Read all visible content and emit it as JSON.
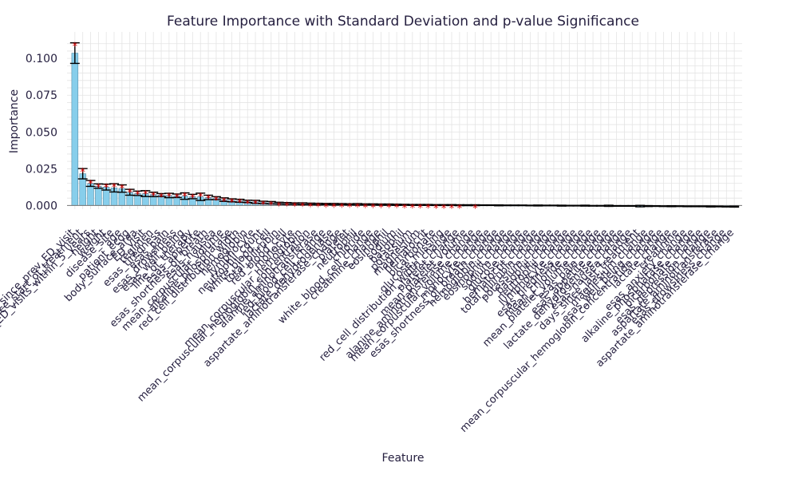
{
  "chart_data": {
    "type": "bar",
    "title": "Feature Importance with Standard Deviation and p-value Significance",
    "xlabel": "Feature",
    "ylabel": "Importance",
    "ylim": [
      -0.0025,
      0.118
    ],
    "yticks": [
      "0.000",
      "0.025",
      "0.050",
      "0.075",
      "0.100"
    ],
    "grid": true,
    "significance_marker": "*",
    "categories": [
      "days_since_prev_ED_visit",
      "days_since_start_of_treatment",
      "num_prior_ED_visits_within_5_years",
      "height",
      "weight",
      "disease_site",
      "age",
      "patient_ecog",
      "body_surface_area",
      "ED_visit",
      "regimen",
      "esas_tiredness",
      "esas_pain",
      "esas_drowsiness",
      "esas_well_being",
      "line_of_therapy",
      "esas_appetite",
      "esas_shortness_of_breath",
      "esas_nausea",
      "mean_corpuscular_volume",
      "alkaline_phosphatase",
      "red_cell_distribution_width",
      "hemoglobin",
      "lymphocyte",
      "neutrophil_count",
      "white_blood_cell",
      "total_bilirubin",
      "red_blood_cell",
      "monocyte",
      "mean_corpuscular_hemoglobin",
      "mean_corpuscular_hemoglobin_concentration",
      "alanine_aminotransferase",
      "red_blood_cell_change",
      "lactate_dehydrogenase",
      "aspartate_aminotransferase_change",
      "platelet",
      "neutrophil",
      "chloride",
      "white_blood_cell_change",
      "creatinine_change",
      "eosinophil",
      "sodium",
      "basophil",
      "potassium",
      "magnesium",
      "hematocrit",
      "bicarbonate",
      "glucose_missing",
      "red_cell_distribution_width_change",
      "platelet_change",
      "mean_platelet_volume",
      "alanine_aminotransferase_change",
      "mean_corpuscular_volume_change",
      "monocyte_change",
      "esas_shortness_of_breath_change",
      "hemoglobin_change",
      "eosinophil_change",
      "sodium_change",
      "glucose_change",
      "hematocrit_change",
      "total_bilirubin_change",
      "potassium_change",
      "basophil_change",
      "neutrophil_change",
      "lymphocyte_change",
      "esas_tiredness_change",
      "mean_chloride_change",
      "mean_platelet_volume_change",
      "esas_pain_change",
      "esas_appetite_change",
      "lactate_dehydrogenase_change",
      "esas_nausea_change",
      "days_since_last_treatment",
      "magnesium_change",
      "esas_well_being_change",
      "mean_corpuscular_hemoglobin_concentration_change",
      "lactate_change",
      "creatinine",
      "esas_anxiety_change",
      "alkaline_phosphatase_change",
      "bicarbonate_change",
      "esas_depression_change",
      "aspartate_aminotransferase",
      "esas_drowsiness_change",
      "aspartate_aminotransferase_change"
    ],
    "values": [
      0.1036,
      0.0216,
      0.015,
      0.0132,
      0.0125,
      0.012,
      0.0115,
      0.009,
      0.0083,
      0.0081,
      0.0075,
      0.0071,
      0.0068,
      0.0066,
      0.0064,
      0.0061,
      0.0059,
      0.0055,
      0.005,
      0.004,
      0.0035,
      0.0032,
      0.0028,
      0.0025,
      0.0021,
      0.0019,
      0.0016,
      0.0014,
      0.0013,
      0.0012,
      0.0011,
      0.001,
      0.001,
      0.0009,
      0.0009,
      0.0008,
      0.0008,
      0.0007,
      0.0007,
      0.0006,
      0.0006,
      0.0005,
      0.0005,
      0.0004,
      0.0004,
      0.0004,
      0.0003,
      0.0003,
      0.0003,
      0.0002,
      0.0002,
      0.0002,
      0.0002,
      0.0002,
      0.0001,
      0.0001,
      0.0001,
      0.0001,
      0.0,
      0.0,
      0.0,
      0.0,
      -0.0001,
      -0.0001,
      -0.0001,
      -0.0001,
      -0.0002,
      -0.0002,
      -0.0002,
      -0.0003,
      -0.0003,
      -0.0003,
      -0.0004,
      -0.0004,
      -0.0004,
      -0.0005,
      -0.0005,
      -0.0005,
      -0.0006,
      -0.0006,
      -0.0006,
      -0.0007,
      -0.0007,
      -0.0008,
      -0.0008
    ],
    "std": [
      0.007,
      0.0035,
      0.002,
      0.0015,
      0.002,
      0.0028,
      0.0025,
      0.002,
      0.0015,
      0.002,
      0.0015,
      0.001,
      0.0015,
      0.0012,
      0.0022,
      0.0015,
      0.0025,
      0.0015,
      0.001,
      0.0012,
      0.001,
      0.001,
      0.0008,
      0.001,
      0.0008,
      0.0008,
      0.0006,
      0.0006,
      0.0005,
      0.0006,
      0.0005,
      0.0005,
      0.0004,
      0.0005,
      0.0004,
      0.0004,
      0.0005,
      0.0004,
      0.0004,
      0.0004,
      0.0004,
      0.0004,
      0.0003,
      0.0003,
      0.0003,
      0.0003,
      0.0003,
      0.0003,
      0.0003,
      0.0003,
      0.0003,
      0.0003,
      0.0002,
      0.0002,
      0.0003,
      0.0002,
      0.0002,
      0.0002,
      0.0002,
      0.0003,
      0.0002,
      0.0002,
      0.0003,
      0.0002,
      0.0002,
      0.0003,
      0.0002,
      0.0002,
      0.0004,
      0.0002,
      0.0002,
      0.0002,
      0.0005,
      0.0003,
      0.0002,
      0.0002,
      0.0003,
      0.0002,
      0.0002,
      0.0002,
      0.0002,
      0.0003,
      0.0002,
      0.0002,
      0.0003
    ],
    "significant": [
      true,
      true,
      true,
      true,
      true,
      true,
      true,
      true,
      true,
      true,
      true,
      true,
      true,
      true,
      true,
      true,
      true,
      true,
      true,
      true,
      true,
      true,
      true,
      true,
      true,
      true,
      true,
      true,
      true,
      true,
      true,
      true,
      true,
      true,
      true,
      true,
      true,
      true,
      true,
      true,
      true,
      true,
      true,
      true,
      true,
      true,
      true,
      true,
      true,
      true,
      false,
      true,
      false,
      false,
      false,
      false,
      false,
      false,
      false,
      false,
      false,
      false,
      false,
      false,
      false,
      false,
      false,
      false,
      false,
      false,
      false,
      false,
      false,
      false,
      false,
      false,
      false,
      false,
      false,
      false,
      false,
      false,
      false,
      false,
      false
    ]
  }
}
